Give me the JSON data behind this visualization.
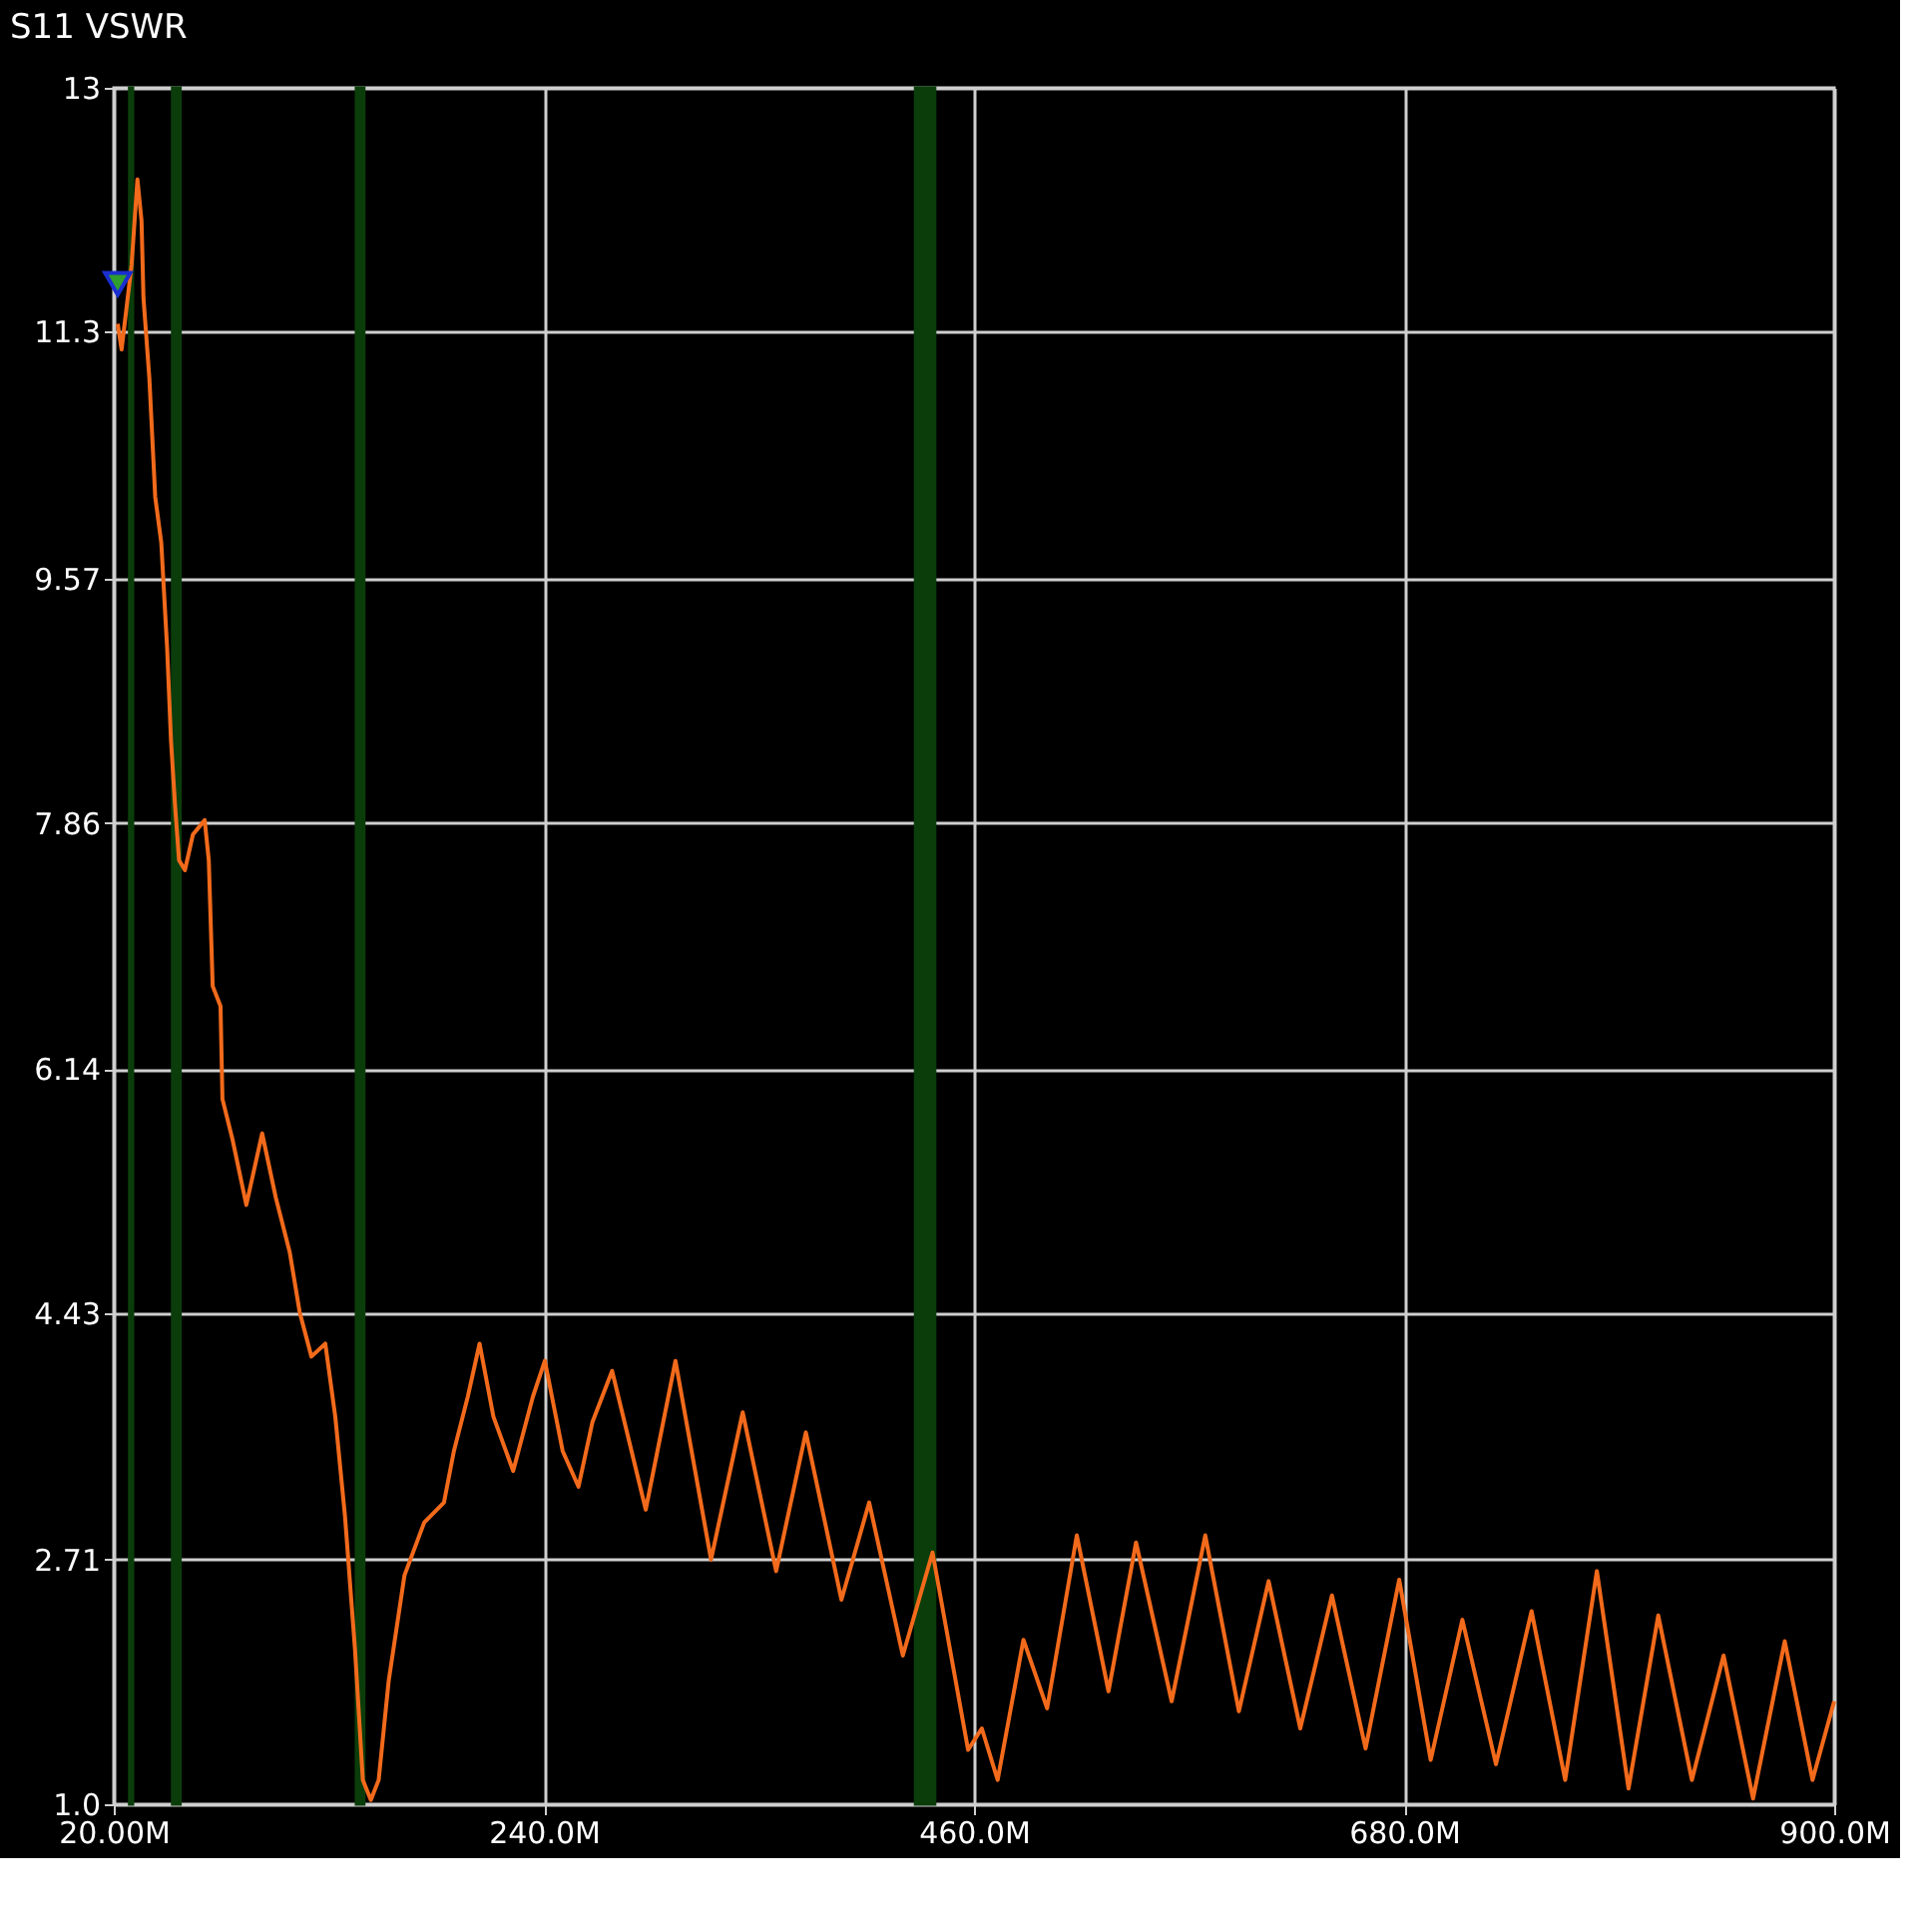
{
  "chart_data": {
    "type": "line",
    "title": "S11 VSWR",
    "xlim": [
      20,
      900
    ],
    "xticks": [
      {
        "value": 20,
        "label": "20.00M"
      },
      {
        "value": 240,
        "label": "240.0M"
      },
      {
        "value": 460,
        "label": "460.0M"
      },
      {
        "value": 680,
        "label": "680.0M"
      },
      {
        "value": 900,
        "label": "900.0M"
      }
    ],
    "ylim": [
      1,
      13
    ],
    "yticks": [
      {
        "value": 1,
        "label": "1.0"
      },
      2.71,
      4.43,
      6.14,
      7.86,
      9.57,
      11.3,
      13
    ],
    "grid": true,
    "line_style": "solid",
    "marker": "none",
    "bands": [
      {
        "axis": "x",
        "from": 28,
        "to": 29.7,
        "color": "#0b3d0b"
      },
      {
        "axis": "x",
        "from": 50,
        "to": 54,
        "color": "#0b3d0b"
      },
      {
        "axis": "x",
        "from": 144,
        "to": 148,
        "color": "#0b3d0b"
      },
      {
        "axis": "x",
        "from": 430,
        "to": 440,
        "color": "#0b3d0b"
      }
    ],
    "series": [
      {
        "color": "#f26a1b",
        "x": [
          22.0,
          24.0,
          29.1,
          32.1,
          34.2,
          35.2,
          38.2,
          41.2,
          44.3,
          47.3,
          49.3,
          51.4,
          53.4,
          56.4,
          60.5,
          66.5,
          68.6,
          70.6,
          74.6,
          75.6,
          80.7,
          87.8,
          95.9,
          102.9,
          110.0,
          115.1,
          121.1,
          128.2,
          133.3,
          138.3,
          143.4,
          147.4,
          151.5,
          155.5,
          160.6,
          168.7,
          178.8,
          188.9,
          194.0,
          201.1,
          207.1,
          214.2,
          224.3,
          234.4,
          240.5,
          249.6,
          257.7,
          264.8,
          274.9,
          292.1,
          307.3,
          325.5,
          341.7,
          358.8,
          374.0,
          392.2,
          406.4,
          423.6,
          438.8,
          457.0,
          464.0,
          472.1,
          485.3,
          497.4,
          512.6,
          528.8,
          542.9,
          561.1,
          578.3,
          595.5,
          610.7,
          626.9,
          643.1,
          660.3,
          677.5,
          693.6,
          709.8,
          727.0,
          745.2,
          762.4,
          778.6,
          794.8,
          810.0,
          827.2,
          843.4,
          858.5,
          874.7,
          888.9,
          900.0
        ],
        "values": [
          11.35,
          11.17,
          11.76,
          12.36,
          12.07,
          11.53,
          10.97,
          10.14,
          9.82,
          9.08,
          8.43,
          7.97,
          7.6,
          7.53,
          7.78,
          7.88,
          7.6,
          6.72,
          6.58,
          5.93,
          5.65,
          5.19,
          5.69,
          5.24,
          4.86,
          4.44,
          4.13,
          4.22,
          3.71,
          3.01,
          2.08,
          1.17,
          1.03,
          1.17,
          1.86,
          2.6,
          2.97,
          3.11,
          3.47,
          3.85,
          4.22,
          3.71,
          3.33,
          3.85,
          4.1,
          3.47,
          3.22,
          3.67,
          4.03,
          3.06,
          4.1,
          2.71,
          3.74,
          2.63,
          3.6,
          2.43,
          3.11,
          2.04,
          2.76,
          1.38,
          1.53,
          1.17,
          2.15,
          1.67,
          2.88,
          1.79,
          2.83,
          1.72,
          2.88,
          1.65,
          2.56,
          1.53,
          2.46,
          1.39,
          2.57,
          1.31,
          2.29,
          1.28,
          2.35,
          1.17,
          2.63,
          1.11,
          2.32,
          1.17,
          2.04,
          1.04,
          2.14,
          1.17,
          1.72
        ]
      },
      {
        "type": "scatter",
        "marker": "triangle",
        "color": "#2e9e2e",
        "x": [
          22
        ],
        "values": [
          11.63
        ]
      }
    ]
  }
}
